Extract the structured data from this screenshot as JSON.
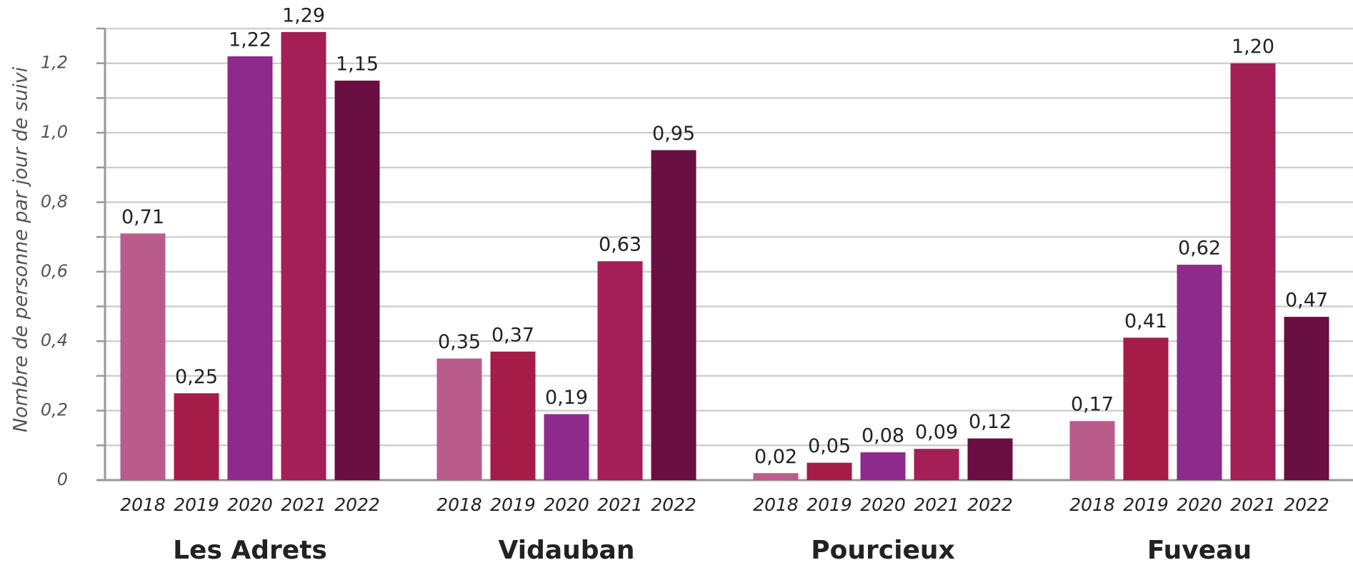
{
  "chart_data": {
    "type": "bar",
    "y_label": "Nombre de personne par jour de suivi",
    "categories": [
      "Les Adrets",
      "Vidauban",
      "Pourcieux",
      "Fuveau"
    ],
    "series": [
      {
        "name": "2018",
        "color": "#b95c8a",
        "values": [
          0.71,
          0.35,
          0.02,
          0.17
        ],
        "value_labels": [
          "0,71",
          "0,35",
          "0,02",
          "0,17"
        ]
      },
      {
        "name": "2019",
        "color": "#a61c48",
        "values": [
          0.25,
          0.37,
          0.05,
          0.41
        ],
        "value_labels": [
          "0,25",
          "0,37",
          "0,05",
          "0,41"
        ]
      },
      {
        "name": "2020",
        "color": "#8e2a8c",
        "values": [
          1.22,
          0.19,
          0.08,
          0.62
        ],
        "value_labels": [
          "1,22",
          "0,19",
          "0,08",
          "0,62"
        ]
      },
      {
        "name": "2021",
        "color": "#a31f55",
        "values": [
          1.29,
          0.63,
          0.09,
          1.2
        ],
        "value_labels": [
          "1,29",
          "0,63",
          "0,09",
          "1,20"
        ]
      },
      {
        "name": "2022",
        "color": "#6a0f42",
        "values": [
          1.15,
          0.95,
          0.12,
          0.47
        ],
        "value_labels": [
          "1,15",
          "0,95",
          "0,12",
          "0,47"
        ]
      }
    ],
    "ylim": [
      0,
      1.3
    ],
    "yticks": [
      0,
      {
        "value": 0.2,
        "label": "0,2"
      },
      {
        "value": 0.4,
        "label": "0,4"
      },
      {
        "value": 0.6,
        "label": "0,6"
      },
      {
        "value": 0.8,
        "label": "0,8"
      },
      {
        "value": 1.0,
        "label": "1,0"
      },
      {
        "value": 1.2,
        "label": "1,2"
      }
    ],
    "minor_yticks": [
      0.1,
      0.3,
      0.5,
      0.7,
      0.9,
      1.1,
      1.3
    ],
    "grid": true
  }
}
